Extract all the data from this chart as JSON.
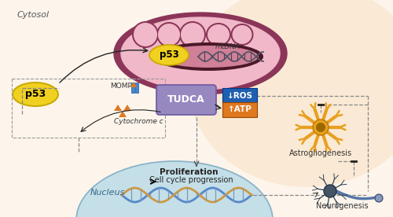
{
  "bg_color": "#fdf5ec",
  "circle_bg": "#fae8d0",
  "nucleus_color": "#c5dfe8",
  "nucleus_edge": "#8ab4c8",
  "mito_outer": "#8b3558",
  "mito_inner": "#f0b8c8",
  "mito_dark_lumen": "#4a1828",
  "mito_lumen_light": "#d08098",
  "p53_fill": "#f0d020",
  "p53_edge": "#c8a800",
  "tudca_fill": "#9888c0",
  "tudca_edge": "#7060a0",
  "ros_fill": "#2060b0",
  "atp_fill": "#e07820",
  "momp_blue": "#4488cc",
  "cytc_orange": "#e07820",
  "astro_orange": "#e8a020",
  "neuro_dark": "#334466",
  "neuro_blue": "#6688bb",
  "arrow_dark": "#222222",
  "dashed_gray": "#888888",
  "border_color": "#bbbbbb",
  "cytosol_label": "Cytosol",
  "nucleus_label": "Nucleus",
  "momp_label": "MOMP",
  "cytc_label": "Cytochrome c",
  "mtdna_label": "mtDNA",
  "prolif_label": "Proliferation",
  "ccp_label": "Cell cycle progression",
  "astro_label": "Astrogliogenesis",
  "neuro_label": "Neurogenesis",
  "p53_text": "p53",
  "tudca_text": "TUDCA",
  "ros_text": "↓ROS",
  "atp_text": "↑ATP"
}
